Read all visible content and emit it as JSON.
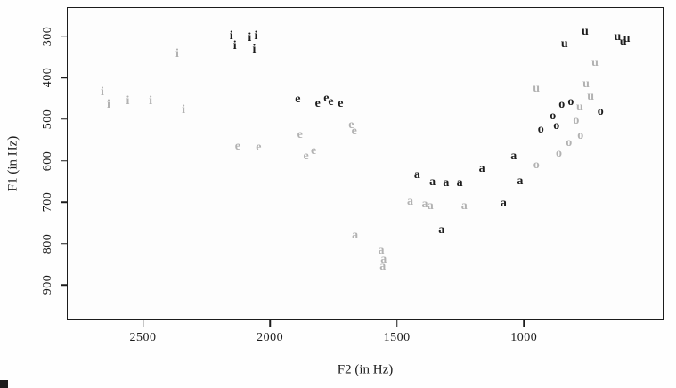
{
  "chart_data": {
    "type": "scatter",
    "title": "",
    "xlabel": "F2 (in Hz)",
    "ylabel": "F1 (in Hz)",
    "legend": "none",
    "grid": false,
    "x_axis": {
      "lim": [
        2800,
        450
      ],
      "ticks": [
        "2500",
        "2000",
        "1500",
        "1000"
      ],
      "tick_values": [
        2500,
        2000,
        1500,
        1000
      ],
      "reversed": true
    },
    "y_axis": {
      "lim": [
        230,
        985
      ],
      "ticks": [
        "300",
        "400",
        "500",
        "600",
        "700",
        "800",
        "900"
      ],
      "tick_values": [
        300,
        400,
        500,
        600,
        700,
        800,
        900
      ],
      "reversed": true
    },
    "colors": {
      "black": "#1c1c1c",
      "gray": "#b2b2b2"
    },
    "points": [
      {
        "label": "i",
        "f2": 2152,
        "f1": 300,
        "color": "black"
      },
      {
        "label": "i",
        "f2": 2138,
        "f1": 325,
        "color": "black"
      },
      {
        "label": "i",
        "f2": 2080,
        "f1": 305,
        "color": "black"
      },
      {
        "label": "i",
        "f2": 2055,
        "f1": 300,
        "color": "black"
      },
      {
        "label": "i",
        "f2": 2062,
        "f1": 332,
        "color": "black"
      },
      {
        "label": "i",
        "f2": 2660,
        "f1": 435,
        "color": "gray"
      },
      {
        "label": "i",
        "f2": 2635,
        "f1": 465,
        "color": "gray"
      },
      {
        "label": "i",
        "f2": 2560,
        "f1": 458,
        "color": "gray"
      },
      {
        "label": "i",
        "f2": 2470,
        "f1": 458,
        "color": "gray"
      },
      {
        "label": "i",
        "f2": 2365,
        "f1": 343,
        "color": "gray"
      },
      {
        "label": "i",
        "f2": 2340,
        "f1": 478,
        "color": "gray"
      },
      {
        "label": "e",
        "f2": 1890,
        "f1": 452,
        "color": "black"
      },
      {
        "label": "e",
        "f2": 1812,
        "f1": 463,
        "color": "black"
      },
      {
        "label": "e",
        "f2": 1778,
        "f1": 450,
        "color": "black"
      },
      {
        "label": "e",
        "f2": 1760,
        "f1": 460,
        "color": "black"
      },
      {
        "label": "e",
        "f2": 1722,
        "f1": 463,
        "color": "black"
      },
      {
        "label": "e",
        "f2": 2127,
        "f1": 566,
        "color": "gray"
      },
      {
        "label": "e",
        "f2": 2045,
        "f1": 568,
        "color": "gray"
      },
      {
        "label": "e",
        "f2": 1882,
        "f1": 538,
        "color": "gray"
      },
      {
        "label": "e",
        "f2": 1858,
        "f1": 590,
        "color": "gray"
      },
      {
        "label": "e",
        "f2": 1828,
        "f1": 578,
        "color": "gray"
      },
      {
        "label": "e",
        "f2": 1680,
        "f1": 515,
        "color": "gray"
      },
      {
        "label": "e",
        "f2": 1668,
        "f1": 530,
        "color": "gray"
      },
      {
        "label": "a",
        "f2": 1420,
        "f1": 636,
        "color": "black"
      },
      {
        "label": "a",
        "f2": 1360,
        "f1": 653,
        "color": "black"
      },
      {
        "label": "a",
        "f2": 1306,
        "f1": 655,
        "color": "black"
      },
      {
        "label": "a",
        "f2": 1253,
        "f1": 655,
        "color": "black"
      },
      {
        "label": "a",
        "f2": 1324,
        "f1": 768,
        "color": "black"
      },
      {
        "label": "a",
        "f2": 1165,
        "f1": 620,
        "color": "black"
      },
      {
        "label": "a",
        "f2": 1040,
        "f1": 590,
        "color": "black"
      },
      {
        "label": "a",
        "f2": 1015,
        "f1": 650,
        "color": "black"
      },
      {
        "label": "a",
        "f2": 1080,
        "f1": 703,
        "color": "black"
      },
      {
        "label": "a",
        "f2": 1448,
        "f1": 700,
        "color": "gray"
      },
      {
        "label": "a",
        "f2": 1390,
        "f1": 705,
        "color": "gray"
      },
      {
        "label": "a",
        "f2": 1368,
        "f1": 710,
        "color": "gray"
      },
      {
        "label": "a",
        "f2": 1235,
        "f1": 710,
        "color": "gray"
      },
      {
        "label": "a",
        "f2": 1665,
        "f1": 782,
        "color": "gray"
      },
      {
        "label": "a",
        "f2": 1562,
        "f1": 818,
        "color": "gray"
      },
      {
        "label": "a",
        "f2": 1552,
        "f1": 838,
        "color": "gray"
      },
      {
        "label": "a",
        "f2": 1556,
        "f1": 856,
        "color": "gray"
      },
      {
        "label": "o",
        "f2": 851,
        "f1": 465,
        "color": "black"
      },
      {
        "label": "o",
        "f2": 815,
        "f1": 460,
        "color": "black"
      },
      {
        "label": "o",
        "f2": 886,
        "f1": 493,
        "color": "black"
      },
      {
        "label": "o",
        "f2": 933,
        "f1": 525,
        "color": "black"
      },
      {
        "label": "o",
        "f2": 872,
        "f1": 518,
        "color": "black"
      },
      {
        "label": "o",
        "f2": 698,
        "f1": 482,
        "color": "black"
      },
      {
        "label": "o",
        "f2": 794,
        "f1": 504,
        "color": "gray"
      },
      {
        "label": "o",
        "f2": 777,
        "f1": 540,
        "color": "gray"
      },
      {
        "label": "o",
        "f2": 823,
        "f1": 557,
        "color": "gray"
      },
      {
        "label": "o",
        "f2": 862,
        "f1": 583,
        "color": "gray"
      },
      {
        "label": "o",
        "f2": 951,
        "f1": 611,
        "color": "gray"
      },
      {
        "label": "u",
        "f2": 759,
        "f1": 290,
        "color": "black"
      },
      {
        "label": "u",
        "f2": 840,
        "f1": 320,
        "color": "black"
      },
      {
        "label": "u",
        "f2": 631,
        "f1": 303,
        "color": "black"
      },
      {
        "label": "u",
        "f2": 609,
        "f1": 315,
        "color": "black"
      },
      {
        "label": "u",
        "f2": 595,
        "f1": 308,
        "color": "black"
      },
      {
        "label": "u",
        "f2": 720,
        "f1": 364,
        "color": "gray"
      },
      {
        "label": "u",
        "f2": 951,
        "f1": 428,
        "color": "gray"
      },
      {
        "label": "u",
        "f2": 755,
        "f1": 417,
        "color": "gray"
      },
      {
        "label": "u",
        "f2": 737,
        "f1": 447,
        "color": "gray"
      },
      {
        "label": "u",
        "f2": 780,
        "f1": 472,
        "color": "gray"
      }
    ]
  }
}
